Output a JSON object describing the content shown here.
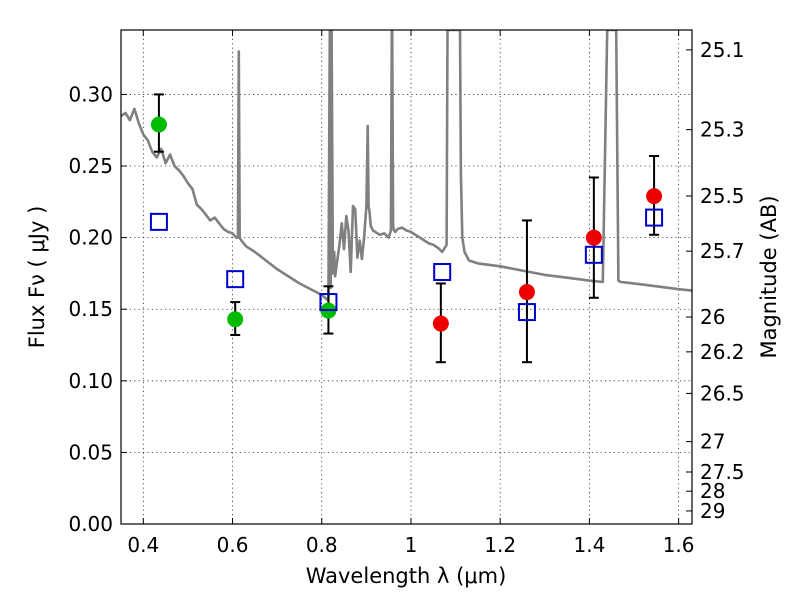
{
  "chart_data": {
    "type": "scatter",
    "xlabel": "Wavelength  λ (μm)",
    "ylabel": "Flux  Fν  ( μJy )",
    "ylabel_right": "Magnitude (AB)",
    "xlim": [
      0.35,
      1.63
    ],
    "ylim": [
      0.0,
      0.345
    ],
    "x_ticks": [
      0.4,
      0.6,
      0.8,
      1.0,
      1.2,
      1.4,
      1.6
    ],
    "x_tick_labels": [
      "0.4",
      "0.6",
      "0.8",
      "1",
      "1.2",
      "1.4",
      "1.6"
    ],
    "y_ticks": [
      0.0,
      0.05,
      0.1,
      0.15,
      0.2,
      0.25,
      0.3
    ],
    "y_tick_labels": [
      "0.00",
      "0.05",
      "0.10",
      "0.15",
      "0.20",
      "0.25",
      "0.30"
    ],
    "right_ticks": [
      {
        "label": "25.1",
        "mag": 25.1
      },
      {
        "label": "25.3",
        "mag": 25.3
      },
      {
        "label": "25.5",
        "mag": 25.5
      },
      {
        "label": "25.7",
        "mag": 25.7
      },
      {
        "label": "26",
        "mag": 26.0
      },
      {
        "label": "26.2",
        "mag": 26.2
      },
      {
        "label": "26.5",
        "mag": 26.5
      },
      {
        "label": "27",
        "mag": 27.0
      },
      {
        "label": "27.5",
        "mag": 27.5
      },
      {
        "label": "28",
        "mag": 28.0
      },
      {
        "label": "29",
        "mag": 29.0
      }
    ],
    "grid": true,
    "series": [
      {
        "kind": "line",
        "color": "#808080",
        "x": [
          0.35,
          0.36,
          0.37,
          0.38,
          0.39,
          0.4,
          0.41,
          0.42,
          0.43,
          0.44,
          0.45,
          0.46,
          0.47,
          0.48,
          0.49,
          0.5,
          0.51,
          0.52,
          0.53,
          0.54,
          0.55,
          0.56,
          0.57,
          0.58,
          0.59,
          0.6,
          0.608,
          0.612,
          0.614,
          0.616,
          0.618,
          0.62,
          0.63,
          0.65,
          0.7,
          0.75,
          0.8,
          0.815,
          0.818,
          0.82,
          0.822,
          0.825,
          0.828,
          0.83,
          0.84,
          0.845,
          0.85,
          0.855,
          0.86,
          0.865,
          0.87,
          0.875,
          0.88,
          0.885,
          0.89,
          0.895,
          0.9,
          0.903,
          0.905,
          0.907,
          0.91,
          0.915,
          0.92,
          0.93,
          0.94,
          0.95,
          0.955,
          0.957,
          0.958,
          0.96,
          0.962,
          0.965,
          0.97,
          0.98,
          0.99,
          1.0,
          1.01,
          1.02,
          1.03,
          1.04,
          1.05,
          1.06,
          1.07,
          1.08,
          1.082,
          1.085,
          1.09,
          1.1,
          1.11,
          1.112,
          1.115,
          1.12,
          1.13,
          1.15,
          1.2,
          1.25,
          1.3,
          1.35,
          1.4,
          1.43,
          1.44,
          1.445,
          1.46,
          1.465,
          1.47,
          1.5,
          1.55,
          1.6,
          1.63
        ],
        "y": [
          0.285,
          0.287,
          0.282,
          0.29,
          0.28,
          0.272,
          0.268,
          0.26,
          0.256,
          0.262,
          0.252,
          0.258,
          0.25,
          0.247,
          0.243,
          0.238,
          0.234,
          0.223,
          0.22,
          0.216,
          0.212,
          0.214,
          0.21,
          0.206,
          0.204,
          0.203,
          0.2,
          0.2,
          0.33,
          0.2,
          0.199,
          0.198,
          0.194,
          0.19,
          0.178,
          0.168,
          0.16,
          0.156,
          0.345,
          0.165,
          0.345,
          0.175,
          0.19,
          0.173,
          0.196,
          0.21,
          0.192,
          0.215,
          0.205,
          0.176,
          0.222,
          0.22,
          0.186,
          0.198,
          0.185,
          0.2,
          0.222,
          0.278,
          0.222,
          0.218,
          0.208,
          0.205,
          0.204,
          0.202,
          0.203,
          0.2,
          0.205,
          0.345,
          0.345,
          0.208,
          0.205,
          0.204,
          0.206,
          0.207,
          0.205,
          0.204,
          0.202,
          0.2,
          0.198,
          0.196,
          0.195,
          0.193,
          0.19,
          0.195,
          0.345,
          0.345,
          0.345,
          0.345,
          0.345,
          0.245,
          0.2,
          0.19,
          0.184,
          0.182,
          0.18,
          0.177,
          0.174,
          0.172,
          0.17,
          0.169,
          0.345,
          0.345,
          0.345,
          0.17,
          0.169,
          0.168,
          0.166,
          0.164,
          0.163
        ]
      },
      {
        "kind": "errorbar",
        "color": "#000000",
        "points": [
          {
            "x": 0.435,
            "y": 0.279,
            "lo": 0.26,
            "hi": 0.3
          },
          {
            "x": 0.606,
            "y": 0.143,
            "lo": 0.132,
            "hi": 0.155
          },
          {
            "x": 0.815,
            "y": 0.149,
            "lo": 0.133,
            "hi": 0.166
          },
          {
            "x": 1.067,
            "y": 0.14,
            "lo": 0.113,
            "hi": 0.168
          },
          {
            "x": 1.26,
            "y": 0.162,
            "lo": 0.113,
            "hi": 0.212
          },
          {
            "x": 1.41,
            "y": 0.2,
            "lo": 0.158,
            "hi": 0.242
          },
          {
            "x": 1.545,
            "y": 0.229,
            "lo": 0.202,
            "hi": 0.257
          }
        ]
      },
      {
        "kind": "scatter",
        "marker": "circle",
        "color": "#00bb00",
        "x": [
          0.435,
          0.606,
          0.815
        ],
        "y": [
          0.279,
          0.143,
          0.149
        ]
      },
      {
        "kind": "scatter",
        "marker": "circle",
        "color": "#ee0000",
        "x": [
          1.067,
          1.26,
          1.41,
          1.545
        ],
        "y": [
          0.14,
          0.162,
          0.2,
          0.229
        ]
      },
      {
        "kind": "scatter",
        "marker": "open-square",
        "color": "#0000cc",
        "x": [
          0.435,
          0.606,
          0.815,
          1.07,
          1.26,
          1.41,
          1.545
        ],
        "y": [
          0.211,
          0.171,
          0.155,
          0.176,
          0.148,
          0.188,
          0.214
        ]
      }
    ]
  }
}
